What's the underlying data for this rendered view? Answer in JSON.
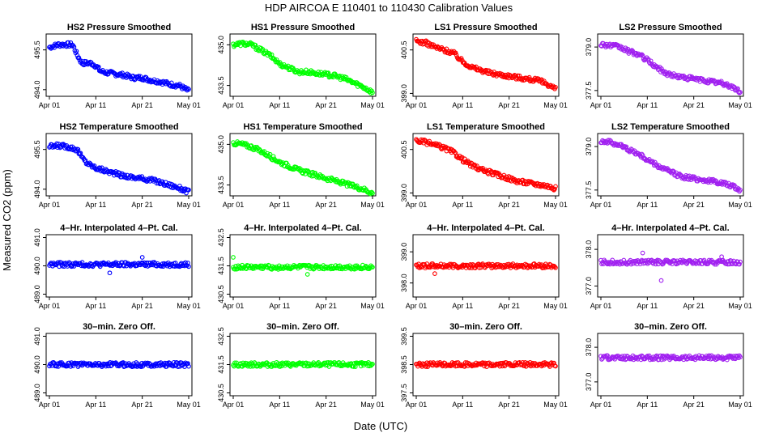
{
  "figure": {
    "title": "HDP    AIRCOA E    110401 to 110430    Calibration Values",
    "xlabel": "Date (UTC)",
    "ylabel": "Measured CO2 (ppm)"
  },
  "colors": {
    "HS2": "#0000ff",
    "HS1": "#00ff00",
    "LS1": "#ff0000",
    "LS2": "#a020f0"
  },
  "x_ticks": [
    "Apr 01",
    "Apr 11",
    "Apr 21",
    "May 01"
  ],
  "x_tick_days": [
    0,
    10,
    20,
    30
  ],
  "chart_data": [
    {
      "type": "scatter",
      "title": "HS2 Pressure Smoothed",
      "color_key": "HS2",
      "ylim": [
        493.75,
        496.1
      ],
      "yticks": [
        "494.0",
        "495.5"
      ],
      "ytick_values": [
        494.0,
        495.5
      ],
      "trend": [
        [
          0,
          495.6
        ],
        [
          2,
          495.7
        ],
        [
          5,
          495.7
        ],
        [
          6,
          495.3
        ],
        [
          7,
          495.0
        ],
        [
          9,
          495.0
        ],
        [
          10,
          494.9
        ],
        [
          11,
          494.7
        ],
        [
          12,
          494.65
        ],
        [
          14,
          494.6
        ],
        [
          16,
          494.55
        ],
        [
          18,
          494.45
        ],
        [
          20,
          494.45
        ],
        [
          22,
          494.35
        ],
        [
          24,
          494.3
        ],
        [
          26,
          494.2
        ],
        [
          28,
          494.15
        ],
        [
          30,
          493.95
        ]
      ]
    },
    {
      "type": "scatter",
      "title": "HS1 Pressure Smoothed",
      "color_key": "HS1",
      "ylim": [
        433.1,
        435.4
      ],
      "yticks": [
        "433.5",
        "435.0"
      ],
      "ytick_values": [
        433.5,
        435.0
      ],
      "trend": [
        [
          0,
          435.0
        ],
        [
          2,
          435.05
        ],
        [
          4,
          435.0
        ],
        [
          6,
          434.8
        ],
        [
          8,
          434.6
        ],
        [
          10,
          434.3
        ],
        [
          12,
          434.15
        ],
        [
          14,
          434.0
        ],
        [
          16,
          434.0
        ],
        [
          18,
          433.95
        ],
        [
          20,
          433.9
        ],
        [
          22,
          433.85
        ],
        [
          24,
          433.75
        ],
        [
          26,
          433.6
        ],
        [
          28,
          433.45
        ],
        [
          30,
          433.25
        ]
      ]
    },
    {
      "type": "scatter",
      "title": "LS1 Pressure Smoothed",
      "color_key": "LS1",
      "ylim": [
        398.9,
        401.05
      ],
      "yticks": [
        "399.0",
        "400.5"
      ],
      "ytick_values": [
        399.0,
        400.5
      ],
      "trend": [
        [
          0,
          400.8
        ],
        [
          2,
          400.75
        ],
        [
          4,
          400.6
        ],
        [
          6,
          400.5
        ],
        [
          8,
          400.4
        ],
        [
          10,
          400.1
        ],
        [
          12,
          399.9
        ],
        [
          14,
          399.8
        ],
        [
          16,
          399.7
        ],
        [
          18,
          399.65
        ],
        [
          20,
          399.6
        ],
        [
          22,
          399.55
        ],
        [
          24,
          399.5
        ],
        [
          26,
          399.45
        ],
        [
          28,
          399.35
        ],
        [
          30,
          399.15
        ]
      ]
    },
    {
      "type": "scatter",
      "title": "LS2 Pressure Smoothed",
      "color_key": "LS2",
      "ylim": [
        377.3,
        379.45
      ],
      "yticks": [
        "377.5",
        "379.0"
      ],
      "ytick_values": [
        377.5,
        379.0
      ],
      "trend": [
        [
          0,
          379.1
        ],
        [
          2,
          379.05
        ],
        [
          4,
          379.0
        ],
        [
          6,
          378.85
        ],
        [
          8,
          378.75
        ],
        [
          10,
          378.55
        ],
        [
          12,
          378.3
        ],
        [
          14,
          378.1
        ],
        [
          16,
          378.0
        ],
        [
          18,
          377.95
        ],
        [
          20,
          377.9
        ],
        [
          22,
          377.85
        ],
        [
          24,
          377.8
        ],
        [
          26,
          377.75
        ],
        [
          28,
          377.65
        ],
        [
          30,
          377.45
        ]
      ]
    },
    {
      "type": "scatter",
      "title": "HS2 Temperature Smoothed",
      "color_key": "HS2",
      "ylim": [
        493.75,
        496.1
      ],
      "yticks": [
        "494.0",
        "495.5"
      ],
      "ytick_values": [
        494.0,
        495.5
      ],
      "trend": [
        [
          0,
          495.6
        ],
        [
          2,
          495.65
        ],
        [
          4,
          495.6
        ],
        [
          6,
          495.5
        ],
        [
          7,
          495.2
        ],
        [
          8,
          495.0
        ],
        [
          10,
          494.8
        ],
        [
          12,
          494.7
        ],
        [
          14,
          494.6
        ],
        [
          16,
          494.5
        ],
        [
          18,
          494.45
        ],
        [
          20,
          494.4
        ],
        [
          22,
          494.35
        ],
        [
          24,
          494.25
        ],
        [
          26,
          494.15
        ],
        [
          28,
          494.05
        ],
        [
          30,
          493.9
        ]
      ]
    },
    {
      "type": "scatter",
      "title": "HS1 Temperature Smoothed",
      "color_key": "HS1",
      "ylim": [
        433.1,
        435.4
      ],
      "yticks": [
        "433.5",
        "435.0"
      ],
      "ytick_values": [
        433.5,
        435.0
      ],
      "trend": [
        [
          0,
          435.05
        ],
        [
          2,
          435.0
        ],
        [
          4,
          434.9
        ],
        [
          6,
          434.75
        ],
        [
          8,
          434.55
        ],
        [
          10,
          434.35
        ],
        [
          12,
          434.2
        ],
        [
          14,
          434.05
        ],
        [
          16,
          433.95
        ],
        [
          18,
          433.85
        ],
        [
          20,
          433.75
        ],
        [
          22,
          433.65
        ],
        [
          24,
          433.55
        ],
        [
          26,
          433.45
        ],
        [
          28,
          433.35
        ],
        [
          30,
          433.2
        ]
      ]
    },
    {
      "type": "scatter",
      "title": "LS1 Temperature Smoothed",
      "color_key": "LS1",
      "ylim": [
        398.9,
        401.05
      ],
      "yticks": [
        "399.0",
        "400.5"
      ],
      "ytick_values": [
        399.0,
        400.5
      ],
      "trend": [
        [
          0,
          400.8
        ],
        [
          2,
          400.75
        ],
        [
          4,
          400.65
        ],
        [
          6,
          400.55
        ],
        [
          8,
          400.4
        ],
        [
          10,
          400.15
        ],
        [
          12,
          399.95
        ],
        [
          14,
          399.8
        ],
        [
          16,
          399.7
        ],
        [
          18,
          399.6
        ],
        [
          20,
          399.5
        ],
        [
          22,
          399.4
        ],
        [
          24,
          399.35
        ],
        [
          26,
          399.3
        ],
        [
          28,
          399.25
        ],
        [
          30,
          399.15
        ]
      ]
    },
    {
      "type": "scatter",
      "title": "LS2 Temperature Smoothed",
      "color_key": "LS2",
      "ylim": [
        377.3,
        379.45
      ],
      "yticks": [
        "377.5",
        "379.0"
      ],
      "ytick_values": [
        377.5,
        379.0
      ],
      "trend": [
        [
          0,
          379.2
        ],
        [
          2,
          379.15
        ],
        [
          4,
          379.05
        ],
        [
          6,
          378.9
        ],
        [
          8,
          378.75
        ],
        [
          10,
          378.55
        ],
        [
          12,
          378.35
        ],
        [
          14,
          378.2
        ],
        [
          16,
          378.05
        ],
        [
          18,
          377.95
        ],
        [
          20,
          377.9
        ],
        [
          22,
          377.85
        ],
        [
          24,
          377.8
        ],
        [
          26,
          377.75
        ],
        [
          28,
          377.65
        ],
        [
          30,
          377.5
        ]
      ]
    },
    {
      "type": "scatter",
      "title": "4–Hr. Interpolated 4–Pt. Cal.",
      "color_key": "HS2",
      "ylim": [
        488.9,
        491.1
      ],
      "yticks": [
        "489.0",
        "490.0",
        "491.0"
      ],
      "ytick_values": [
        489.0,
        490.0,
        491.0
      ],
      "trend": [
        [
          0,
          490.05
        ],
        [
          30,
          490.05
        ]
      ],
      "outliers": [
        [
          13,
          489.75
        ],
        [
          20,
          490.3
        ]
      ]
    },
    {
      "type": "scatter",
      "title": "4–Hr. Interpolated 4–Pt. Cal.",
      "color_key": "HS1",
      "ylim": [
        430.4,
        432.6
      ],
      "yticks": [
        "430.5",
        "431.5",
        "432.5"
      ],
      "ytick_values": [
        430.5,
        431.5,
        432.5
      ],
      "trend": [
        [
          0,
          431.45
        ],
        [
          30,
          431.45
        ]
      ],
      "outliers": [
        [
          0,
          431.8
        ],
        [
          16,
          431.2
        ]
      ]
    },
    {
      "type": "scatter",
      "title": "4–Hr. Interpolated 4–Pt. Cal.",
      "color_key": "LS1",
      "ylim": [
        397.55,
        399.55
      ],
      "yticks": [
        "398.0",
        "399.0"
      ],
      "ytick_values": [
        398.0,
        399.0
      ],
      "trend": [
        [
          0,
          398.55
        ],
        [
          30,
          398.55
        ]
      ],
      "outliers": [
        [
          4,
          398.3
        ]
      ]
    },
    {
      "type": "scatter",
      "title": "4–Hr. Interpolated 4–Pt. Cal.",
      "color_key": "LS2",
      "ylim": [
        376.7,
        378.4
      ],
      "yticks": [
        "377.0",
        "378.0"
      ],
      "ytick_values": [
        377.0,
        378.0
      ],
      "trend": [
        [
          0,
          377.65
        ],
        [
          30,
          377.65
        ]
      ],
      "outliers": [
        [
          13,
          377.15
        ],
        [
          9,
          377.9
        ],
        [
          26,
          377.8
        ]
      ]
    },
    {
      "type": "scatter",
      "title": "30–min. Zero Off.",
      "color_key": "HS2",
      "ylim": [
        488.9,
        491.1
      ],
      "yticks": [
        "489.0",
        "490.0",
        "491.0"
      ],
      "ytick_values": [
        489.0,
        490.0,
        491.0
      ],
      "trend": [
        [
          0,
          490.0
        ],
        [
          30,
          490.0
        ]
      ]
    },
    {
      "type": "scatter",
      "title": "30–min. Zero Off.",
      "color_key": "HS1",
      "ylim": [
        430.4,
        432.6
      ],
      "yticks": [
        "430.5",
        "431.5",
        "432.5"
      ],
      "ytick_values": [
        430.5,
        431.5,
        432.5
      ],
      "trend": [
        [
          0,
          431.5
        ],
        [
          30,
          431.5
        ]
      ]
    },
    {
      "type": "scatter",
      "title": "30–min. Zero Off.",
      "color_key": "LS1",
      "ylim": [
        397.4,
        399.6
      ],
      "yticks": [
        "397.5",
        "398.5",
        "399.5"
      ],
      "ytick_values": [
        397.5,
        398.5,
        399.5
      ],
      "trend": [
        [
          0,
          398.5
        ],
        [
          30,
          398.5
        ]
      ]
    },
    {
      "type": "scatter",
      "title": "30–min. Zero Off.",
      "color_key": "LS2",
      "ylim": [
        376.6,
        378.4
      ],
      "yticks": [
        "377.0",
        "378.0"
      ],
      "ytick_values": [
        377.0,
        378.0
      ],
      "trend": [
        [
          0,
          377.7
        ],
        [
          30,
          377.7
        ]
      ]
    }
  ]
}
